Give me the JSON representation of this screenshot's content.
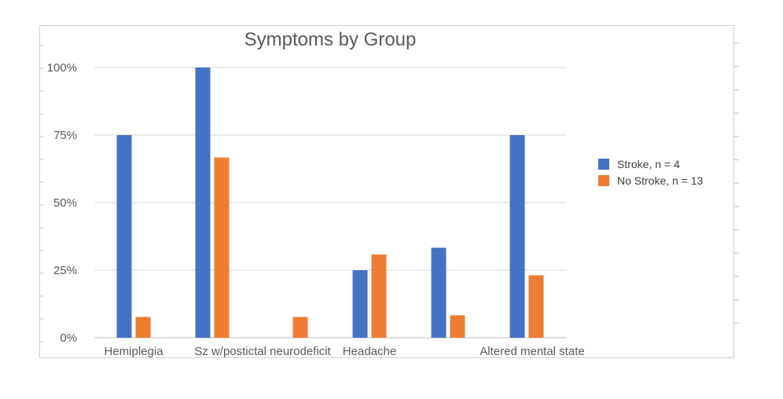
{
  "chart_data": {
    "type": "bar",
    "title": "Symptoms by Group",
    "categories": [
      "Hemiplegia",
      "Sz w/postictal neurodeficit",
      "",
      "Headache",
      "",
      "Altered mental state"
    ],
    "series": [
      {
        "name": "Stroke, n = 4",
        "color": "#4472C4",
        "values": [
          75,
          100,
          0,
          25,
          33.3,
          75
        ]
      },
      {
        "name": "No Stroke, n = 13",
        "color": "#ED7D31",
        "values": [
          7.7,
          66.7,
          7.7,
          30.8,
          8.3,
          23.1
        ]
      }
    ],
    "y_ticks": [
      "0%",
      "25%",
      "50%",
      "75%",
      "100%"
    ],
    "ylim": [
      0,
      100
    ],
    "grid": true,
    "legend_position": "right"
  }
}
